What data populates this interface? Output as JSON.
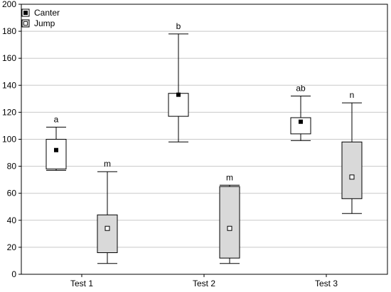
{
  "chart_data": {
    "type": "box",
    "categories": [
      "Test 1",
      "Test 2",
      "Test 3"
    ],
    "ylim": [
      0,
      200
    ],
    "yticks": [
      0,
      20,
      40,
      60,
      80,
      100,
      120,
      140,
      160,
      180,
      200
    ],
    "grid": true,
    "legend_position": "top-left",
    "xlabel": "",
    "ylabel": "",
    "series": [
      {
        "name": "Canter",
        "fill": "#ffffff",
        "marker": "filled-square",
        "boxes": [
          {
            "category": "Test 1",
            "whisker_low": 77,
            "q1": 78,
            "q3": 100,
            "whisker_high": 109,
            "center": 92,
            "label": "a"
          },
          {
            "category": "Test 2",
            "whisker_low": 98,
            "q1": 117,
            "q3": 134,
            "whisker_high": 178,
            "center": 133,
            "label": "b"
          },
          {
            "category": "Test 3",
            "whisker_low": 99,
            "q1": 104,
            "q3": 116,
            "whisker_high": 132,
            "center": 113,
            "label": "ab"
          }
        ]
      },
      {
        "name": "Jump",
        "fill": "#d9d9d9",
        "marker": "open-square",
        "boxes": [
          {
            "category": "Test 1",
            "whisker_low": 8,
            "q1": 16,
            "q3": 44,
            "whisker_high": 76,
            "center": 34,
            "label": "m"
          },
          {
            "category": "Test 2",
            "whisker_low": 8,
            "q1": 12,
            "q3": 65,
            "whisker_high": 66,
            "center": 34,
            "label": "m"
          },
          {
            "category": "Test 3",
            "whisker_low": 45,
            "q1": 56,
            "q3": 98,
            "whisker_high": 127,
            "center": 72,
            "label": "n"
          }
        ]
      }
    ]
  },
  "colors": {
    "grid": "#c8c8c8",
    "axis": "#000000",
    "canter_fill": "#ffffff",
    "jump_fill": "#d9d9d9"
  }
}
